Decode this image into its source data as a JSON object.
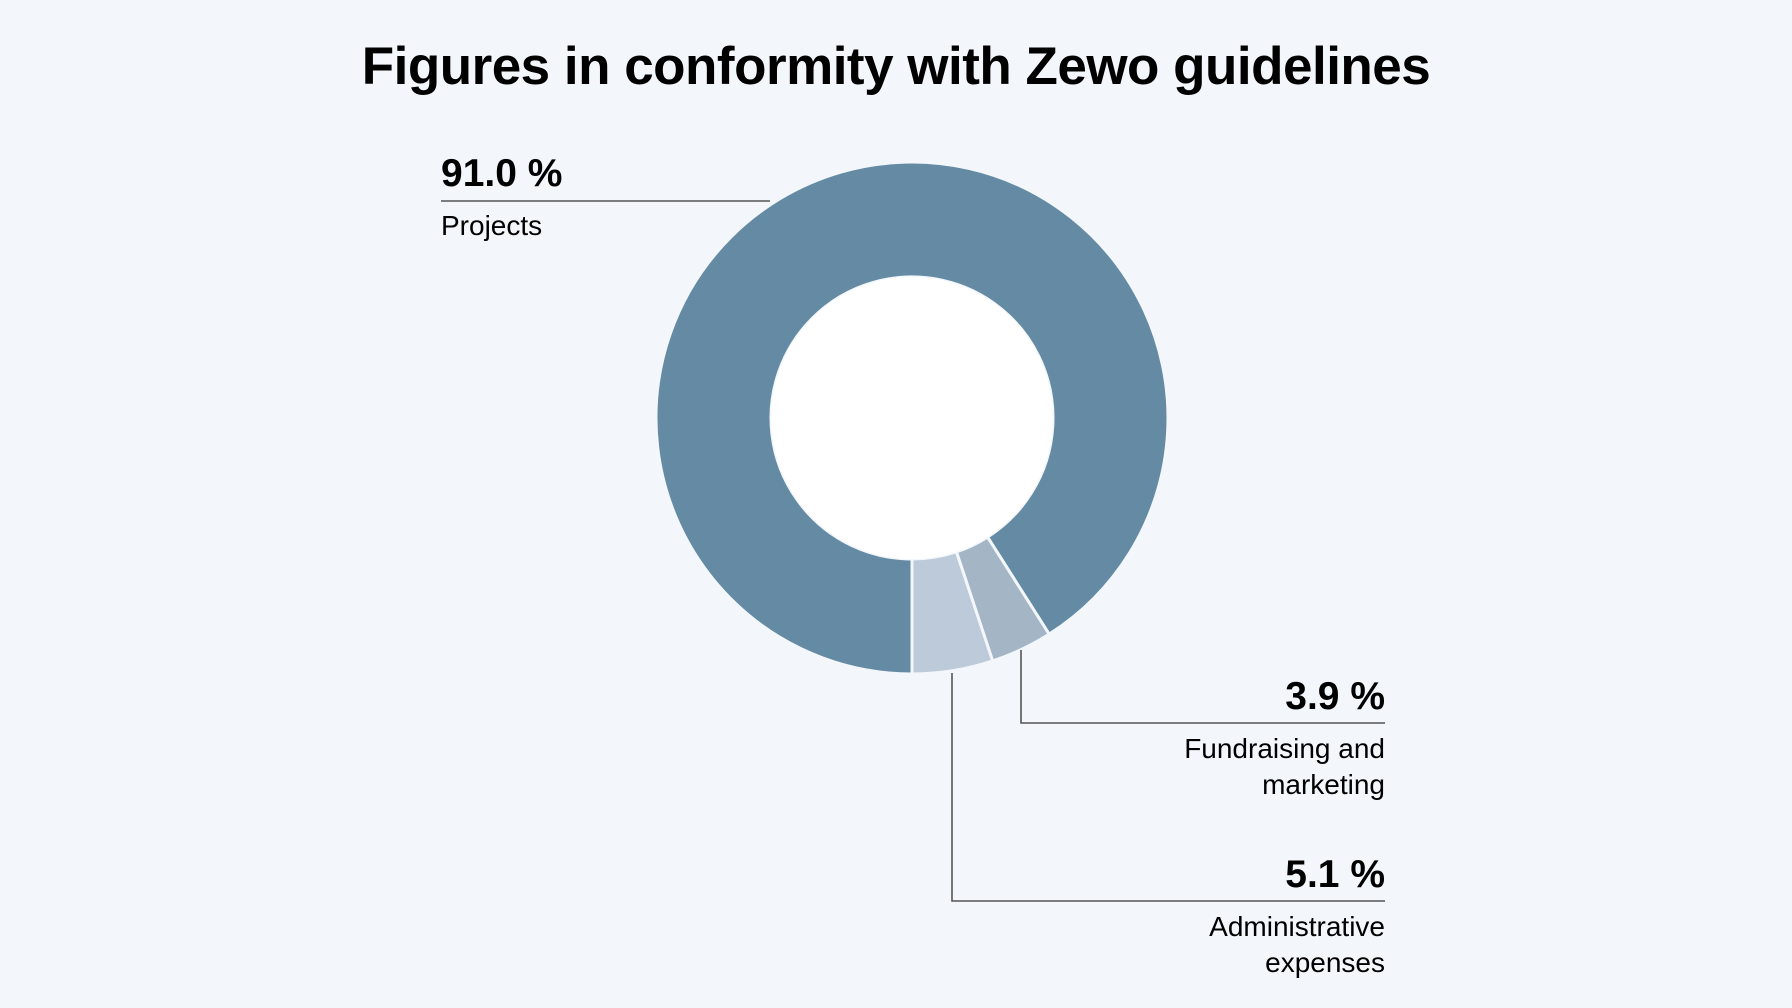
{
  "chart_data": {
    "type": "pie",
    "title": "Figures in conformity with Zewo guidelines",
    "slices": [
      {
        "label": "Projects",
        "value_label": "91.0 %",
        "value": 91.0,
        "color": "#648ba3"
      },
      {
        "label_lines": [
          "Fundraising and",
          "marketing"
        ],
        "value_label": "3.9 %",
        "value": 3.9,
        "color": "#a4b5c5"
      },
      {
        "label_lines": [
          "Administrative",
          "expenses"
        ],
        "value_label": "5.1 %",
        "value": 5.1,
        "color": "#bccad9"
      }
    ],
    "background": "#f3f7fc"
  }
}
